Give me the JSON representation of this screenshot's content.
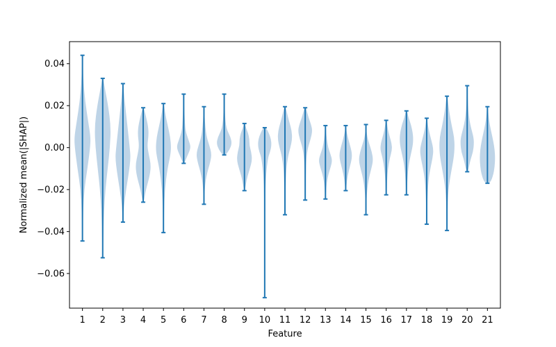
{
  "chart_data": {
    "type": "violin",
    "title": "",
    "xlabel": "Feature",
    "ylabel": "Normalized mean(|SHAP|)",
    "ylim": [
      -0.0765,
      0.0505
    ],
    "xlim": [
      0.36,
      21.64
    ],
    "yticks": [
      -0.06,
      -0.04,
      -0.02,
      0.0,
      0.02,
      0.04
    ],
    "ytick_labels": [
      "−0.06",
      "−0.04",
      "−0.02",
      "0.00",
      "0.02",
      "0.04"
    ],
    "categories": [
      "1",
      "2",
      "3",
      "4",
      "5",
      "6",
      "7",
      "8",
      "9",
      "10",
      "11",
      "12",
      "13",
      "14",
      "15",
      "16",
      "17",
      "18",
      "19",
      "20",
      "21"
    ],
    "grid": false,
    "colors": {
      "line": "#1f77b4",
      "body": "#b3cde3",
      "axis": "#000000"
    },
    "violins": [
      {
        "feature": "1",
        "min": -0.0445,
        "max": 0.044,
        "profile": [
          [
            -0.0445,
            0.03
          ],
          [
            -0.03,
            0.08
          ],
          [
            -0.02,
            0.2
          ],
          [
            -0.01,
            0.55
          ],
          [
            0.0,
            0.85
          ],
          [
            0.005,
            0.9
          ],
          [
            0.012,
            0.65
          ],
          [
            0.022,
            0.3
          ],
          [
            0.032,
            0.1
          ],
          [
            0.044,
            0.03
          ]
        ]
      },
      {
        "feature": "2",
        "min": -0.0525,
        "max": 0.033,
        "profile": [
          [
            -0.0525,
            0.03
          ],
          [
            -0.04,
            0.08
          ],
          [
            -0.03,
            0.15
          ],
          [
            -0.02,
            0.3
          ],
          [
            -0.01,
            0.55
          ],
          [
            0.0,
            0.8
          ],
          [
            0.01,
            0.9
          ],
          [
            0.02,
            0.6
          ],
          [
            0.028,
            0.25
          ],
          [
            0.033,
            0.05
          ]
        ]
      },
      {
        "feature": "3",
        "min": -0.0355,
        "max": 0.0305,
        "profile": [
          [
            -0.0355,
            0.03
          ],
          [
            -0.028,
            0.1
          ],
          [
            -0.02,
            0.35
          ],
          [
            -0.012,
            0.65
          ],
          [
            -0.005,
            0.85
          ],
          [
            0.0,
            0.75
          ],
          [
            0.008,
            0.55
          ],
          [
            0.016,
            0.35
          ],
          [
            0.024,
            0.15
          ],
          [
            0.0305,
            0.04
          ]
        ]
      },
      {
        "feature": "4",
        "min": -0.026,
        "max": 0.019,
        "profile": [
          [
            -0.026,
            0.05
          ],
          [
            -0.02,
            0.3
          ],
          [
            -0.013,
            0.75
          ],
          [
            -0.008,
            0.85
          ],
          [
            -0.003,
            0.6
          ],
          [
            0.001,
            0.45
          ],
          [
            0.006,
            0.6
          ],
          [
            0.01,
            0.55
          ],
          [
            0.015,
            0.3
          ],
          [
            0.019,
            0.05
          ]
        ]
      },
      {
        "feature": "5",
        "min": -0.0405,
        "max": 0.021,
        "profile": [
          [
            -0.0405,
            0.03
          ],
          [
            -0.03,
            0.07
          ],
          [
            -0.02,
            0.15
          ],
          [
            -0.01,
            0.45
          ],
          [
            -0.004,
            0.75
          ],
          [
            0.0,
            0.85
          ],
          [
            0.005,
            0.75
          ],
          [
            0.01,
            0.5
          ],
          [
            0.016,
            0.2
          ],
          [
            0.021,
            0.04
          ]
        ]
      },
      {
        "feature": "6",
        "min": -0.0075,
        "max": 0.0255,
        "profile": [
          [
            -0.0075,
            0.05
          ],
          [
            -0.004,
            0.4
          ],
          [
            -0.001,
            0.7
          ],
          [
            0.001,
            0.75
          ],
          [
            0.004,
            0.5
          ],
          [
            0.008,
            0.2
          ],
          [
            0.013,
            0.12
          ],
          [
            0.018,
            0.07
          ],
          [
            0.022,
            0.04
          ],
          [
            0.0255,
            0.02
          ]
        ]
      },
      {
        "feature": "7",
        "min": -0.027,
        "max": 0.0195,
        "profile": [
          [
            -0.027,
            0.03
          ],
          [
            -0.018,
            0.1
          ],
          [
            -0.012,
            0.35
          ],
          [
            -0.007,
            0.7
          ],
          [
            -0.003,
            0.85
          ],
          [
            0.001,
            0.6
          ],
          [
            0.005,
            0.3
          ],
          [
            0.01,
            0.15
          ],
          [
            0.015,
            0.07
          ],
          [
            0.0195,
            0.03
          ]
        ]
      },
      {
        "feature": "8",
        "min": -0.0035,
        "max": 0.0255,
        "profile": [
          [
            -0.0035,
            0.15
          ],
          [
            -0.001,
            0.6
          ],
          [
            0.002,
            0.85
          ],
          [
            0.005,
            0.7
          ],
          [
            0.008,
            0.35
          ],
          [
            0.011,
            0.18
          ],
          [
            0.015,
            0.1
          ],
          [
            0.019,
            0.06
          ],
          [
            0.022,
            0.03
          ],
          [
            0.0255,
            0.02
          ]
        ]
      },
      {
        "feature": "9",
        "min": -0.0205,
        "max": 0.0115,
        "profile": [
          [
            -0.0205,
            0.05
          ],
          [
            -0.015,
            0.25
          ],
          [
            -0.01,
            0.6
          ],
          [
            -0.006,
            0.85
          ],
          [
            -0.002,
            0.75
          ],
          [
            0.001,
            0.55
          ],
          [
            0.004,
            0.55
          ],
          [
            0.007,
            0.4
          ],
          [
            0.009,
            0.2
          ],
          [
            0.0115,
            0.05
          ]
        ]
      },
      {
        "feature": "10",
        "min": -0.0715,
        "max": 0.0095,
        "profile": [
          [
            -0.0715,
            0.02
          ],
          [
            -0.05,
            0.03
          ],
          [
            -0.03,
            0.05
          ],
          [
            -0.015,
            0.1
          ],
          [
            -0.005,
            0.35
          ],
          [
            -0.002,
            0.6
          ],
          [
            0.001,
            0.75
          ],
          [
            0.004,
            0.7
          ],
          [
            0.007,
            0.45
          ],
          [
            0.0095,
            0.15
          ]
        ]
      },
      {
        "feature": "11",
        "min": -0.032,
        "max": 0.0195,
        "profile": [
          [
            -0.032,
            0.03
          ],
          [
            -0.02,
            0.07
          ],
          [
            -0.01,
            0.15
          ],
          [
            -0.004,
            0.35
          ],
          [
            0.0,
            0.6
          ],
          [
            0.004,
            0.8
          ],
          [
            0.008,
            0.75
          ],
          [
            0.012,
            0.5
          ],
          [
            0.016,
            0.25
          ],
          [
            0.0195,
            0.08
          ]
        ]
      },
      {
        "feature": "12",
        "min": -0.025,
        "max": 0.019,
        "profile": [
          [
            -0.025,
            0.03
          ],
          [
            -0.015,
            0.06
          ],
          [
            -0.005,
            0.12
          ],
          [
            0.0,
            0.3
          ],
          [
            0.004,
            0.6
          ],
          [
            0.008,
            0.8
          ],
          [
            0.011,
            0.65
          ],
          [
            0.014,
            0.4
          ],
          [
            0.017,
            0.2
          ],
          [
            0.019,
            0.08
          ]
        ]
      },
      {
        "feature": "13",
        "min": -0.0245,
        "max": 0.0105,
        "profile": [
          [
            -0.0245,
            0.04
          ],
          [
            -0.018,
            0.1
          ],
          [
            -0.013,
            0.3
          ],
          [
            -0.009,
            0.6
          ],
          [
            -0.006,
            0.75
          ],
          [
            -0.003,
            0.55
          ],
          [
            0.0,
            0.3
          ],
          [
            0.004,
            0.15
          ],
          [
            0.007,
            0.08
          ],
          [
            0.0105,
            0.04
          ]
        ]
      },
      {
        "feature": "14",
        "min": -0.0205,
        "max": 0.0105,
        "profile": [
          [
            -0.0205,
            0.04
          ],
          [
            -0.015,
            0.15
          ],
          [
            -0.01,
            0.4
          ],
          [
            -0.006,
            0.65
          ],
          [
            -0.003,
            0.7
          ],
          [
            0.0,
            0.55
          ],
          [
            0.003,
            0.35
          ],
          [
            0.006,
            0.18
          ],
          [
            0.008,
            0.08
          ],
          [
            0.0105,
            0.04
          ]
        ]
      },
      {
        "feature": "15",
        "min": -0.032,
        "max": 0.011,
        "profile": [
          [
            -0.032,
            0.03
          ],
          [
            -0.022,
            0.08
          ],
          [
            -0.015,
            0.3
          ],
          [
            -0.01,
            0.6
          ],
          [
            -0.006,
            0.8
          ],
          [
            -0.002,
            0.65
          ],
          [
            0.002,
            0.35
          ],
          [
            0.005,
            0.15
          ],
          [
            0.008,
            0.06
          ],
          [
            0.011,
            0.03
          ]
        ]
      },
      {
        "feature": "16",
        "min": -0.0225,
        "max": 0.013,
        "profile": [
          [
            -0.0225,
            0.04
          ],
          [
            -0.015,
            0.1
          ],
          [
            -0.01,
            0.2
          ],
          [
            -0.005,
            0.4
          ],
          [
            -0.001,
            0.65
          ],
          [
            0.002,
            0.6
          ],
          [
            0.005,
            0.4
          ],
          [
            0.008,
            0.22
          ],
          [
            0.011,
            0.1
          ],
          [
            0.013,
            0.04
          ]
        ]
      },
      {
        "feature": "17",
        "min": -0.0225,
        "max": 0.0175,
        "profile": [
          [
            -0.0225,
            0.04
          ],
          [
            -0.015,
            0.1
          ],
          [
            -0.008,
            0.25
          ],
          [
            -0.003,
            0.5
          ],
          [
            0.001,
            0.7
          ],
          [
            0.004,
            0.75
          ],
          [
            0.007,
            0.7
          ],
          [
            0.011,
            0.5
          ],
          [
            0.014,
            0.25
          ],
          [
            0.0175,
            0.06
          ]
        ]
      },
      {
        "feature": "18",
        "min": -0.0365,
        "max": 0.014,
        "profile": [
          [
            -0.0365,
            0.03
          ],
          [
            -0.025,
            0.07
          ],
          [
            -0.015,
            0.2
          ],
          [
            -0.009,
            0.45
          ],
          [
            -0.005,
            0.65
          ],
          [
            -0.001,
            0.75
          ],
          [
            0.003,
            0.55
          ],
          [
            0.007,
            0.3
          ],
          [
            0.011,
            0.12
          ],
          [
            0.014,
            0.05
          ]
        ]
      },
      {
        "feature": "19",
        "min": -0.0395,
        "max": 0.0245,
        "profile": [
          [
            -0.0395,
            0.03
          ],
          [
            -0.03,
            0.06
          ],
          [
            -0.02,
            0.15
          ],
          [
            -0.012,
            0.45
          ],
          [
            -0.005,
            0.75
          ],
          [
            0.0,
            0.85
          ],
          [
            0.005,
            0.8
          ],
          [
            0.01,
            0.55
          ],
          [
            0.017,
            0.25
          ],
          [
            0.0245,
            0.05
          ]
        ]
      },
      {
        "feature": "20",
        "min": -0.0115,
        "max": 0.0295,
        "profile": [
          [
            -0.0115,
            0.08
          ],
          [
            -0.006,
            0.35
          ],
          [
            -0.002,
            0.65
          ],
          [
            0.002,
            0.75
          ],
          [
            0.005,
            0.7
          ],
          [
            0.009,
            0.45
          ],
          [
            0.013,
            0.25
          ],
          [
            0.018,
            0.12
          ],
          [
            0.024,
            0.06
          ],
          [
            0.0295,
            0.03
          ]
        ]
      },
      {
        "feature": "21",
        "min": -0.017,
        "max": 0.0195,
        "profile": [
          [
            -0.017,
            0.3
          ],
          [
            -0.013,
            0.65
          ],
          [
            -0.009,
            0.8
          ],
          [
            -0.005,
            0.85
          ],
          [
            -0.001,
            0.8
          ],
          [
            0.003,
            0.65
          ],
          [
            0.007,
            0.45
          ],
          [
            0.011,
            0.25
          ],
          [
            0.015,
            0.12
          ],
          [
            0.0195,
            0.04
          ]
        ]
      }
    ]
  }
}
